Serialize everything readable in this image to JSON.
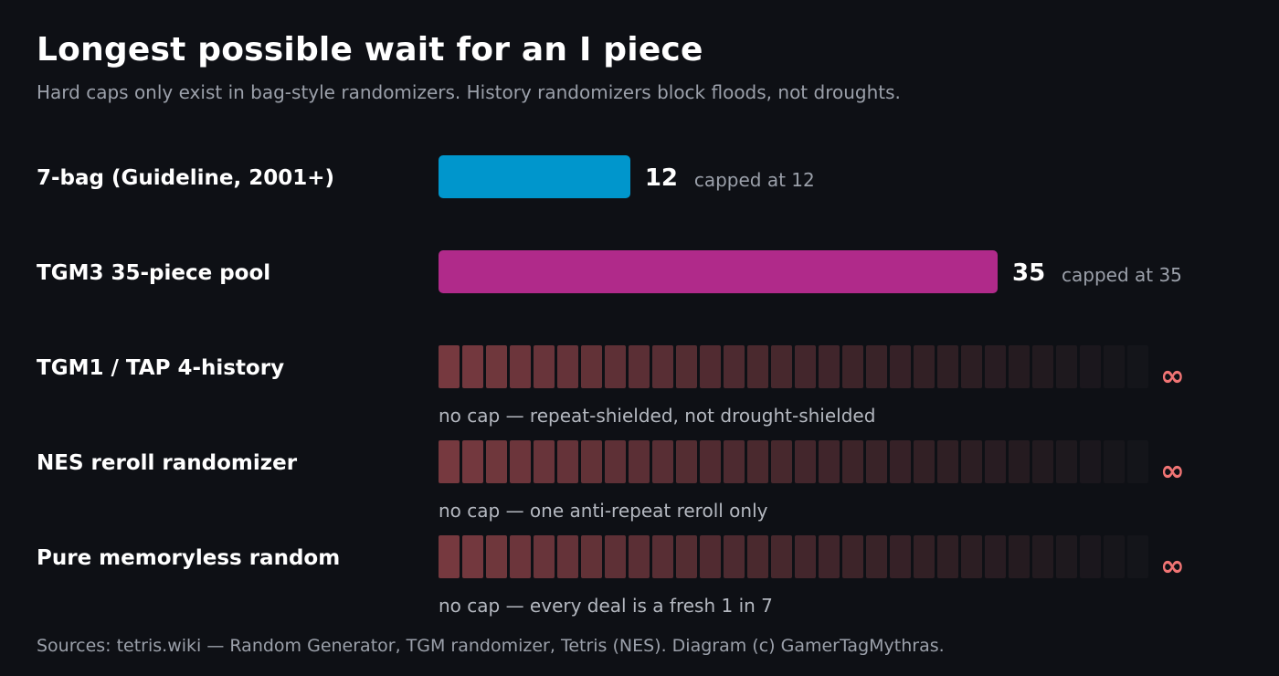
{
  "title": "Longest possible wait for an I piece",
  "subtitle": "Hard caps only exist in bag-style randomizers. History randomizers block floods, not droughts.",
  "footer": "Sources: tetris.wiki — Random Generator, TGM randomizer, Tetris (NES). Diagram (c) GamerTagMythras.",
  "colors": {
    "bag7": "#0096cc",
    "tgm3": "#b02a8a",
    "uncapped_start": "#76393f",
    "infinity": "#f07474"
  },
  "chart_data": {
    "type": "bar",
    "orientation": "horizontal",
    "title": "Longest possible wait for an I piece",
    "subtitle": "Hard caps only exist in bag-style randomizers. History randomizers block floods, not droughts.",
    "categories": [
      "7-bag (Guideline, 2001+)",
      "TGM3 35-piece pool",
      "TGM1 / TAP 4-history",
      "NES reroll randomizer",
      "Pure memoryless random"
    ],
    "values": [
      12,
      35,
      null,
      null,
      null
    ],
    "value_labels": [
      "12",
      "35",
      "∞",
      "∞",
      "∞"
    ],
    "notes": [
      "capped at 12",
      "capped at 35",
      "no cap — repeat-shielded, not drought-shielded",
      "no cap — one anti-repeat reroll only",
      "no cap — every deal is a fresh 1 in 7"
    ],
    "capped": [
      true,
      true,
      false,
      false,
      false
    ],
    "xlim": [
      0,
      35
    ]
  }
}
